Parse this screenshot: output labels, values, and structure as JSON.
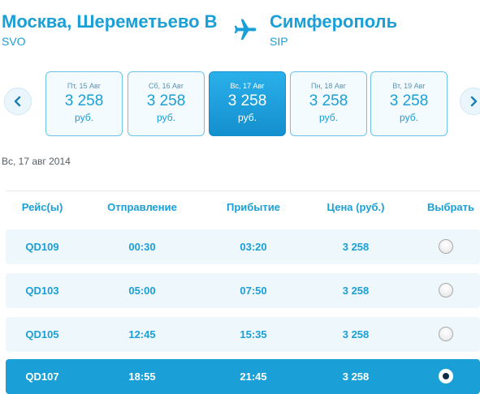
{
  "route": {
    "origin_city": "Москва, Шереметьево В",
    "origin_code": "SVO",
    "dest_city": "Симферополь",
    "dest_code": "SIP",
    "icon": "airplane-icon"
  },
  "date_nav": {
    "prev_icon": "chevron-left-icon",
    "next_icon": "chevron-right-icon",
    "cards": [
      {
        "label": "Пт, 15 Авг",
        "price": "3 258",
        "currency": "руб."
      },
      {
        "label": "Сб, 16 Авг",
        "price": "3 258",
        "currency": "руб."
      },
      {
        "label": "Вс, 17 Авг",
        "price": "3 258",
        "currency": "руб.",
        "selected": true
      },
      {
        "label": "Пн, 18 Авг",
        "price": "3 258",
        "currency": "руб."
      },
      {
        "label": "Вт, 19 Авг",
        "price": "3 258",
        "currency": "руб."
      }
    ]
  },
  "selected_date": "Вс, 17 авг 2014",
  "table": {
    "headers": {
      "flight": "Рейс(ы)",
      "departure": "Отправление",
      "arrival": "Прибытие",
      "price": "Цена (руб.)",
      "select": "Выбрать"
    },
    "rows": [
      {
        "flight": "QD109",
        "departure": "00:30",
        "arrival": "03:20",
        "price": "3 258",
        "selected": false
      },
      {
        "flight": "QD103",
        "departure": "05:00",
        "arrival": "07:50",
        "price": "3 258",
        "selected": false
      },
      {
        "flight": "QD105",
        "departure": "12:45",
        "arrival": "15:35",
        "price": "3 258",
        "selected": false
      },
      {
        "flight": "QD107",
        "departure": "18:55",
        "arrival": "21:45",
        "price": "3 258",
        "selected": true
      }
    ]
  },
  "colors": {
    "accent": "#1a9fd6",
    "row_bg": "#eef7fc",
    "selected_bg": "#1a9fd6"
  }
}
